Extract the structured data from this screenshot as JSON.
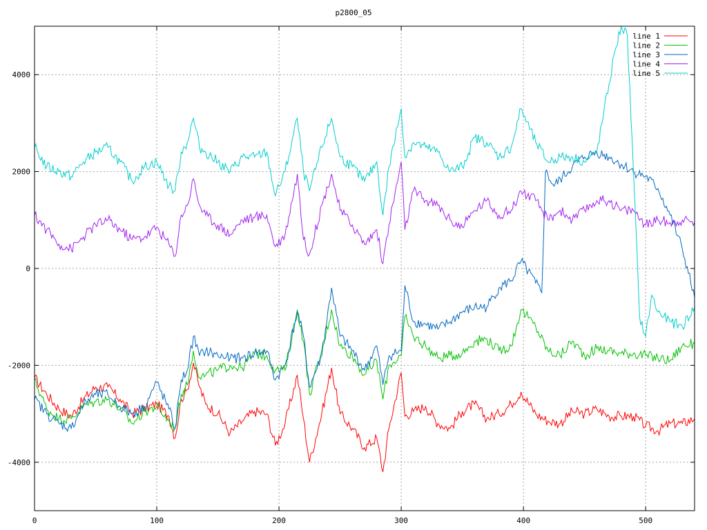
{
  "chart_data": {
    "type": "line",
    "title": "p2800_05",
    "xlabel": "",
    "ylabel": "",
    "xlim": [
      0,
      540
    ],
    "ylim": [
      -5000,
      5000
    ],
    "xticks": [
      0,
      100,
      200,
      300,
      400,
      500
    ],
    "yticks": [
      -4000,
      -2000,
      0,
      2000,
      4000
    ],
    "grid": true,
    "legend_position": "top-right",
    "series": [
      {
        "name": "line 1",
        "color": "#ff0000",
        "x": [
          0,
          10,
          20,
          30,
          40,
          50,
          60,
          70,
          80,
          90,
          100,
          110,
          115,
          120,
          125,
          130,
          135,
          140,
          150,
          160,
          170,
          180,
          190,
          197,
          205,
          215,
          220,
          225,
          235,
          243,
          250,
          260,
          270,
          280,
          285,
          290,
          300,
          303,
          310,
          320,
          330,
          340,
          350,
          360,
          370,
          380,
          390,
          398,
          410,
          420,
          430,
          440,
          450,
          460,
          470,
          480,
          490,
          500,
          510,
          520,
          530,
          540
        ],
        "y": [
          -2250,
          -2600,
          -2900,
          -3050,
          -2700,
          -2450,
          -2450,
          -2700,
          -3000,
          -2900,
          -2800,
          -3050,
          -3500,
          -2700,
          -2500,
          -1950,
          -2450,
          -2800,
          -3000,
          -3400,
          -3150,
          -2950,
          -3000,
          -3650,
          -3200,
          -2200,
          -3100,
          -4000,
          -3000,
          -2050,
          -3000,
          -3300,
          -3700,
          -3500,
          -4200,
          -3300,
          -2150,
          -3050,
          -2950,
          -2850,
          -3200,
          -3300,
          -2950,
          -2800,
          -3100,
          -3000,
          -2800,
          -2550,
          -3000,
          -3150,
          -3200,
          -2950,
          -3000,
          -2900,
          -3050,
          -3050,
          -3050,
          -3250,
          -3350,
          -3200,
          -3200,
          -3100
        ]
      },
      {
        "name": "line 2",
        "color": "#00c000",
        "x": [
          0,
          10,
          20,
          30,
          40,
          50,
          60,
          70,
          80,
          90,
          100,
          110,
          115,
          120,
          125,
          130,
          135,
          140,
          150,
          160,
          170,
          180,
          190,
          197,
          205,
          215,
          220,
          225,
          235,
          243,
          250,
          260,
          270,
          280,
          285,
          290,
          300,
          303,
          310,
          320,
          330,
          340,
          350,
          360,
          370,
          380,
          390,
          398,
          410,
          420,
          430,
          440,
          450,
          460,
          470,
          480,
          490,
          500,
          510,
          520,
          530,
          540
        ],
        "y": [
          -2300,
          -2900,
          -3100,
          -3100,
          -2850,
          -2750,
          -2700,
          -2900,
          -3200,
          -2950,
          -2850,
          -3150,
          -3300,
          -2600,
          -2400,
          -1700,
          -2250,
          -2200,
          -2100,
          -2000,
          -2050,
          -1750,
          -1800,
          -2100,
          -2100,
          -850,
          -1500,
          -2600,
          -1700,
          -850,
          -1600,
          -1800,
          -2200,
          -1900,
          -2700,
          -2000,
          -1800,
          -1000,
          -1400,
          -1600,
          -1850,
          -1800,
          -1750,
          -1500,
          -1450,
          -1700,
          -1600,
          -850,
          -1200,
          -1700,
          -1800,
          -1500,
          -1800,
          -1650,
          -1700,
          -1750,
          -1750,
          -1800,
          -1850,
          -1900,
          -1600,
          -1550
        ]
      },
      {
        "name": "line 3",
        "color": "#0066c0",
        "x": [
          0,
          10,
          20,
          30,
          40,
          50,
          60,
          70,
          80,
          90,
          100,
          110,
          115,
          120,
          125,
          130,
          135,
          140,
          150,
          160,
          170,
          180,
          190,
          197,
          205,
          215,
          220,
          225,
          235,
          243,
          250,
          260,
          270,
          280,
          285,
          290,
          300,
          303,
          310,
          320,
          330,
          340,
          350,
          360,
          370,
          380,
          390,
          398,
          410,
          415,
          418,
          425,
          440,
          450,
          460,
          470,
          480,
          490,
          500,
          510,
          520,
          530,
          540
        ],
        "y": [
          -2700,
          -3000,
          -3200,
          -3300,
          -2800,
          -2600,
          -2600,
          -2850,
          -3000,
          -2850,
          -2350,
          -2900,
          -3300,
          -2300,
          -2100,
          -1400,
          -1800,
          -1700,
          -1800,
          -1850,
          -1850,
          -1750,
          -1700,
          -2300,
          -2000,
          -900,
          -1400,
          -2450,
          -1800,
          -400,
          -1400,
          -1700,
          -2100,
          -1600,
          -2400,
          -1800,
          -1700,
          -350,
          -1100,
          -1150,
          -1250,
          -1100,
          -900,
          -800,
          -800,
          -400,
          -250,
          150,
          -300,
          -500,
          2000,
          1700,
          2100,
          2300,
          2400,
          2300,
          2150,
          2000,
          1900,
          1650,
          1100,
          400,
          -600
        ]
      },
      {
        "name": "line 4",
        "color": "#a020f0",
        "x": [
          0,
          10,
          20,
          30,
          40,
          50,
          60,
          70,
          80,
          90,
          100,
          110,
          115,
          120,
          125,
          130,
          135,
          140,
          150,
          160,
          170,
          180,
          190,
          197,
          205,
          215,
          220,
          225,
          235,
          243,
          250,
          260,
          270,
          280,
          285,
          290,
          300,
          303,
          310,
          320,
          330,
          340,
          350,
          360,
          370,
          380,
          390,
          398,
          410,
          420,
          430,
          440,
          450,
          460,
          470,
          480,
          490,
          500,
          510,
          520,
          530,
          540
        ],
        "y": [
          1100,
          800,
          500,
          400,
          650,
          900,
          1000,
          800,
          600,
          650,
          850,
          500,
          250,
          1100,
          1300,
          1850,
          1300,
          1100,
          900,
          700,
          1000,
          1050,
          1100,
          450,
          700,
          1950,
          600,
          300,
          1300,
          1950,
          1200,
          900,
          500,
          800,
          100,
          900,
          2200,
          800,
          1600,
          1400,
          1300,
          1000,
          850,
          1200,
          1400,
          1100,
          1200,
          1600,
          1400,
          1000,
          1200,
          1000,
          1200,
          1400,
          1400,
          1200,
          1200,
          900,
          1000,
          950,
          1000,
          950
        ]
      },
      {
        "name": "line 5",
        "color": "#00cccc",
        "x": [
          0,
          10,
          20,
          30,
          40,
          50,
          60,
          70,
          80,
          90,
          100,
          110,
          115,
          120,
          125,
          130,
          135,
          140,
          150,
          160,
          170,
          180,
          190,
          197,
          205,
          215,
          220,
          225,
          235,
          243,
          250,
          260,
          270,
          280,
          285,
          290,
          300,
          303,
          310,
          320,
          330,
          340,
          350,
          360,
          370,
          380,
          390,
          398,
          410,
          420,
          430,
          440,
          450,
          460,
          470,
          475,
          480,
          485,
          490,
          495,
          500,
          505,
          510,
          520,
          530,
          540
        ],
        "y": [
          2500,
          2100,
          2000,
          1900,
          2200,
          2400,
          2500,
          2200,
          1800,
          2100,
          2200,
          1700,
          1600,
          2400,
          2600,
          3100,
          2500,
          2400,
          2200,
          2000,
          2300,
          2300,
          2400,
          1500,
          2000,
          3100,
          2000,
          1600,
          2500,
          3100,
          2300,
          2100,
          1800,
          2200,
          1100,
          2100,
          3300,
          2300,
          2600,
          2500,
          2400,
          2000,
          2100,
          2700,
          2600,
          2300,
          2500,
          3300,
          2600,
          2200,
          2300,
          2300,
          2200,
          2400,
          3800,
          4500,
          5000,
          4800,
          2000,
          -1000,
          -1400,
          -550,
          -900,
          -1100,
          -1200,
          -800
        ]
      }
    ]
  }
}
